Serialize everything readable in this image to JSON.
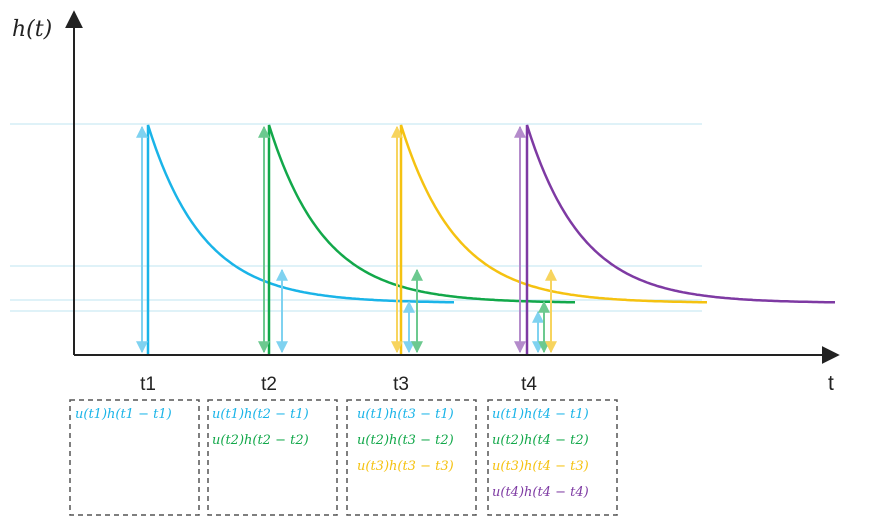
{
  "diagram": {
    "y_axis_label": "h(t)",
    "x_axis_label": "t",
    "colors": {
      "t1": "#1AB4E8",
      "t2": "#12A84A",
      "t3": "#F5C211",
      "t4": "#7E3AA3",
      "guide": "#BFE4F2",
      "axis": "#222222",
      "box_border": "#555555"
    },
    "time_points": [
      {
        "label": "t1",
        "color_key": "t1"
      },
      {
        "label": "t2",
        "color_key": "t2"
      },
      {
        "label": "t3",
        "color_key": "t3"
      },
      {
        "label": "t4",
        "color_key": "t4"
      }
    ],
    "boxes": [
      {
        "time": "t1",
        "terms": [
          {
            "text": "u(t1)h(t1 − t1)",
            "color_key": "t1"
          }
        ]
      },
      {
        "time": "t2",
        "terms": [
          {
            "text": "u(t1)h(t2 − t1)",
            "color_key": "t1"
          },
          {
            "text": "u(t2)h(t2 − t2)",
            "color_key": "t2"
          }
        ]
      },
      {
        "time": "t3",
        "terms": [
          {
            "text": "u(t1)h(t3 − t1)",
            "color_key": "t1"
          },
          {
            "text": "u(t2)h(t3 − t2)",
            "color_key": "t2"
          },
          {
            "text": "u(t3)h(t3 − t3)",
            "color_key": "t3"
          }
        ]
      },
      {
        "time": "t4",
        "terms": [
          {
            "text": "u(t1)h(t4 − t1)",
            "color_key": "t1"
          },
          {
            "text": "u(t2)h(t4 − t2)",
            "color_key": "t2"
          },
          {
            "text": "u(t3)h(t4 − t3)",
            "color_key": "t3"
          },
          {
            "text": "u(t4)h(t4 − t4)",
            "color_key": "t4"
          }
        ]
      }
    ]
  }
}
